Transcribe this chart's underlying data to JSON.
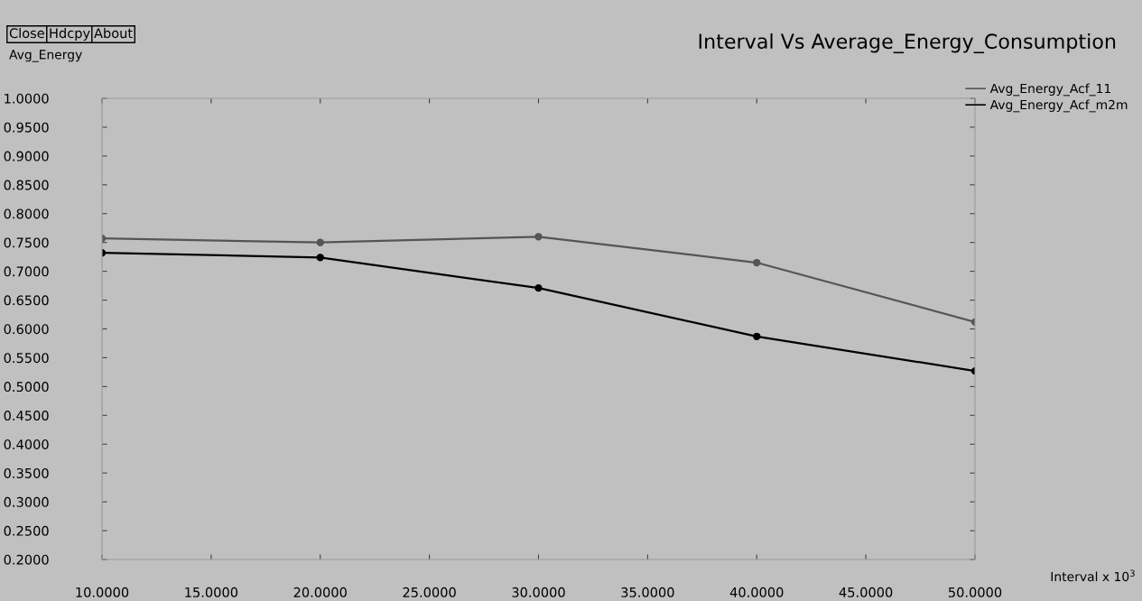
{
  "chart_data": {
    "type": "line",
    "title": "Interval Vs Average_Energy_Consumption",
    "xlabel": "Interval x 10$^{3}$",
    "ylabel": "Avg_Energy",
    "annotations": [
      "Close",
      "Hdcpy",
      "About"
    ],
    "x": [
      10,
      20,
      30,
      40,
      50
    ],
    "series": [
      {
        "name": "Avg_Energy_Acf_11",
        "color": "#555555",
        "values": [
          0.757,
          0.75,
          0.76,
          0.715,
          0.612
        ]
      },
      {
        "name": "Avg_Energy_Acf_m2m",
        "color": "#000000",
        "values": [
          0.732,
          0.724,
          0.671,
          0.587,
          0.527
        ]
      }
    ],
    "xticks": [
      {
        "value": 10,
        "label": "10.0000"
      },
      {
        "value": 15,
        "label": "15.0000"
      },
      {
        "value": 20,
        "label": "20.0000"
      },
      {
        "value": 25,
        "label": "25.0000"
      },
      {
        "value": 30,
        "label": "30.0000"
      },
      {
        "value": 35,
        "label": "35.0000"
      },
      {
        "value": 40,
        "label": "40.0000"
      },
      {
        "value": 45,
        "label": "45.0000"
      },
      {
        "value": 50,
        "label": "50.0000"
      }
    ],
    "yticks": [
      {
        "value": 0.2,
        "label": "0.2000"
      },
      {
        "value": 0.25,
        "label": "0.2500"
      },
      {
        "value": 0.3,
        "label": "0.3000"
      },
      {
        "value": 0.35,
        "label": "0.3500"
      },
      {
        "value": 0.4,
        "label": "0.4000"
      },
      {
        "value": 0.45,
        "label": "0.4500"
      },
      {
        "value": 0.5,
        "label": "0.5000"
      },
      {
        "value": 0.55,
        "label": "0.5500"
      },
      {
        "value": 0.6,
        "label": "0.6000"
      },
      {
        "value": 0.65,
        "label": "0.6500"
      },
      {
        "value": 0.7,
        "label": "0.7000"
      },
      {
        "value": 0.75,
        "label": "0.7500"
      },
      {
        "value": 0.8,
        "label": "0.8000"
      },
      {
        "value": 0.85,
        "label": "0.8500"
      },
      {
        "value": 0.9,
        "label": "0.9000"
      },
      {
        "value": 0.95,
        "label": "0.9500"
      },
      {
        "value": 1.0,
        "label": "1.0000"
      }
    ],
    "xlim": [
      10,
      50
    ],
    "ylim": [
      0.2,
      1.0
    ],
    "grid": false,
    "legend": "top right",
    "marker": "circle",
    "line_style": "solid"
  }
}
